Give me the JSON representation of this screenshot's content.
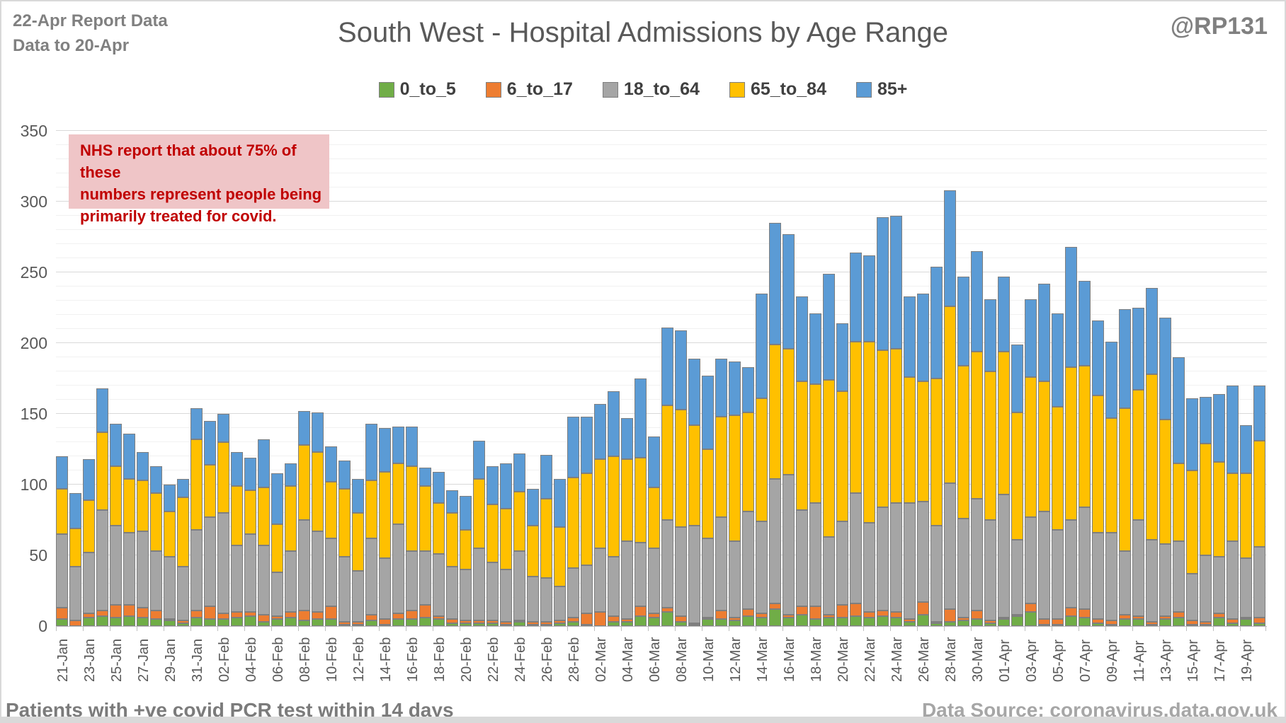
{
  "header": {
    "report_line1": "22-Apr Report Data",
    "report_line2": "Data to 20-Apr",
    "handle": "@RP131"
  },
  "footer": {
    "left": "Patients with  +ve covid PCR test within 14 days",
    "right": "Data Source: coronavirus.data.gov.uk"
  },
  "annotation": {
    "lines": [
      "NHS report that about 75% of these",
      "numbers represent people being",
      "primarily treated for covid."
    ],
    "text_color": "#c00000",
    "background": "#efc5c7"
  },
  "chart_data": {
    "type": "bar",
    "stacked": true,
    "title": "South West - Hospital Admissions by Age Range",
    "xlabel": "",
    "ylabel": "",
    "ylim": [
      0,
      350
    ],
    "y_ticks": [
      0,
      50,
      100,
      150,
      200,
      250,
      300,
      350
    ],
    "grid": {
      "major_interval": 50,
      "minor_interval": 10
    },
    "legend_position": "top",
    "x_label_interval": 2,
    "categories": [
      "21-Jan",
      "22-Jan",
      "23-Jan",
      "24-Jan",
      "25-Jan",
      "26-Jan",
      "27-Jan",
      "28-Jan",
      "29-Jan",
      "30-Jan",
      "31-Jan",
      "01-Feb",
      "02-Feb",
      "03-Feb",
      "04-Feb",
      "05-Feb",
      "06-Feb",
      "07-Feb",
      "08-Feb",
      "09-Feb",
      "10-Feb",
      "11-Feb",
      "12-Feb",
      "13-Feb",
      "14-Feb",
      "15-Feb",
      "16-Feb",
      "17-Feb",
      "18-Feb",
      "19-Feb",
      "20-Feb",
      "21-Feb",
      "22-Feb",
      "23-Feb",
      "24-Feb",
      "25-Feb",
      "26-Feb",
      "27-Feb",
      "28-Feb",
      "01-Mar",
      "02-Mar",
      "03-Mar",
      "04-Mar",
      "05-Mar",
      "06-Mar",
      "07-Mar",
      "08-Mar",
      "09-Mar",
      "10-Mar",
      "11-Mar",
      "12-Mar",
      "13-Mar",
      "14-Mar",
      "15-Mar",
      "16-Mar",
      "17-Mar",
      "18-Mar",
      "19-Mar",
      "20-Mar",
      "21-Mar",
      "22-Mar",
      "23-Mar",
      "24-Mar",
      "25-Mar",
      "26-Mar",
      "27-Mar",
      "28-Mar",
      "29-Mar",
      "30-Mar",
      "31-Mar",
      "01-Apr",
      "02-Apr",
      "03-Apr",
      "04-Apr",
      "05-Apr",
      "06-Apr",
      "07-Apr",
      "08-Apr",
      "09-Apr",
      "10-Apr",
      "11-Apr",
      "12-Apr",
      "13-Apr",
      "14-Apr",
      "15-Apr",
      "16-Apr",
      "17-Apr",
      "18-Apr",
      "19-Apr",
      "20-Apr"
    ],
    "series": [
      {
        "name": "0_to_5",
        "color": "#70AD47",
        "values": [
          5,
          0,
          6,
          7,
          6,
          7,
          6,
          5,
          4,
          2,
          6,
          5,
          5,
          6,
          7,
          3,
          5,
          6,
          4,
          5,
          5,
          1,
          1,
          4,
          1,
          5,
          5,
          6,
          5,
          2,
          2,
          2,
          2,
          1,
          3,
          1,
          1,
          2,
          3,
          1,
          0,
          3,
          3,
          7,
          6,
          10,
          3,
          1,
          5,
          5,
          4,
          7,
          6,
          12,
          6,
          8,
          5,
          6,
          6,
          7,
          6,
          7,
          6,
          3,
          8,
          2,
          3,
          4,
          5,
          2,
          5,
          7,
          10,
          1,
          1,
          7,
          6,
          2,
          1,
          5,
          5,
          1,
          5,
          6,
          1,
          1,
          6,
          2,
          5,
          2
        ]
      },
      {
        "name": "6_to_17",
        "color": "#ED7D31",
        "values": [
          8,
          4,
          3,
          4,
          9,
          8,
          7,
          6,
          1,
          2,
          5,
          9,
          4,
          4,
          3,
          5,
          2,
          4,
          7,
          5,
          9,
          2,
          2,
          4,
          4,
          4,
          6,
          9,
          2,
          3,
          2,
          2,
          2,
          2,
          1,
          2,
          2,
          2,
          3,
          8,
          10,
          4,
          2,
          7,
          3,
          3,
          4,
          1,
          1,
          6,
          2,
          5,
          3,
          4,
          2,
          6,
          9,
          2,
          9,
          9,
          4,
          4,
          4,
          2,
          9,
          1,
          9,
          2,
          6,
          2,
          1,
          1,
          6,
          4,
          4,
          6,
          6,
          3,
          3,
          3,
          2,
          2,
          2,
          4,
          3,
          2,
          3,
          3,
          1,
          4
        ]
      },
      {
        "name": "18_to_64",
        "color": "#A5A5A5",
        "values": [
          52,
          38,
          43,
          71,
          56,
          51,
          54,
          42,
          44,
          38,
          57,
          63,
          71,
          47,
          55,
          49,
          31,
          43,
          64,
          57,
          48,
          46,
          36,
          54,
          43,
          63,
          42,
          38,
          44,
          37,
          36,
          51,
          41,
          37,
          49,
          32,
          31,
          24,
          35,
          34,
          45,
          42,
          55,
          45,
          46,
          62,
          63,
          69,
          56,
          66,
          54,
          69,
          65,
          88,
          99,
          68,
          73,
          55,
          59,
          78,
          63,
          73,
          77,
          82,
          71,
          68,
          89,
          70,
          79,
          71,
          87,
          53,
          61,
          76,
          63,
          62,
          72,
          61,
          62,
          45,
          68,
          58,
          51,
          50,
          33,
          47,
          40,
          55,
          42,
          50
        ]
      },
      {
        "name": "65_to_84",
        "color": "#FFC000",
        "values": [
          32,
          27,
          37,
          55,
          42,
          38,
          36,
          41,
          32,
          49,
          64,
          37,
          50,
          42,
          31,
          41,
          34,
          46,
          53,
          56,
          40,
          48,
          41,
          41,
          61,
          43,
          60,
          46,
          36,
          38,
          28,
          49,
          41,
          43,
          42,
          36,
          56,
          42,
          64,
          65,
          63,
          71,
          58,
          60,
          43,
          81,
          83,
          71,
          63,
          71,
          89,
          70,
          87,
          95,
          89,
          91,
          84,
          111,
          92,
          107,
          128,
          111,
          109,
          89,
          85,
          104,
          125,
          108,
          104,
          105,
          101,
          90,
          99,
          92,
          87,
          108,
          100,
          97,
          81,
          101,
          92,
          117,
          88,
          55,
          73,
          79,
          67,
          48,
          60,
          75
        ]
      },
      {
        "name": "85+",
        "color": "#5B9BD5",
        "values": [
          23,
          25,
          29,
          31,
          30,
          32,
          20,
          19,
          19,
          13,
          22,
          31,
          20,
          24,
          23,
          34,
          36,
          16,
          24,
          28,
          25,
          20,
          24,
          40,
          31,
          26,
          28,
          13,
          22,
          16,
          24,
          27,
          27,
          32,
          27,
          26,
          31,
          34,
          43,
          40,
          39,
          46,
          29,
          56,
          36,
          55,
          56,
          47,
          52,
          41,
          38,
          32,
          74,
          86,
          81,
          60,
          50,
          75,
          48,
          63,
          61,
          94,
          94,
          57,
          62,
          79,
          82,
          63,
          71,
          51,
          53,
          48,
          55,
          69,
          66,
          85,
          60,
          53,
          54,
          70,
          58,
          61,
          72,
          75,
          51,
          33,
          48,
          62,
          34,
          39
        ]
      }
    ]
  }
}
